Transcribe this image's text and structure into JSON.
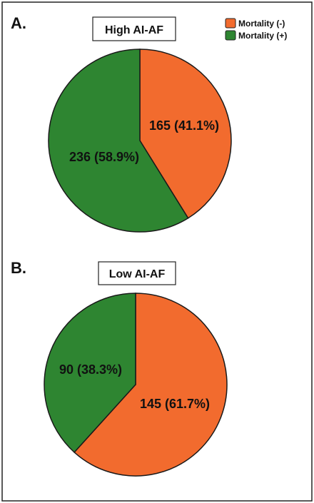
{
  "legend": {
    "placement": "top-right",
    "items": [
      {
        "label": "Mortality (-)",
        "color": "#F26B2E"
      },
      {
        "label": "Mortality (+)",
        "color": "#2E8531"
      }
    ]
  },
  "chart_data": [
    {
      "type": "pie",
      "panel_label": "A.",
      "title": "High AI-AF",
      "categories": [
        "Mortality (-)",
        "Mortality (+)"
      ],
      "values": [
        165,
        236
      ],
      "percentages": [
        41.1,
        58.9
      ],
      "data_labels": [
        "165 (41.1%)",
        "236 (58.9%)"
      ],
      "colors": [
        "#F26B2E",
        "#2E8531"
      ]
    },
    {
      "type": "pie",
      "panel_label": "B.",
      "title": "Low AI-AF",
      "categories": [
        "Mortality (-)",
        "Mortality (+)"
      ],
      "values": [
        145,
        90
      ],
      "percentages": [
        61.7,
        38.3
      ],
      "data_labels": [
        "145 (61.7%)",
        "90 (38.3%)"
      ],
      "colors": [
        "#F26B2E",
        "#2E8531"
      ]
    }
  ]
}
